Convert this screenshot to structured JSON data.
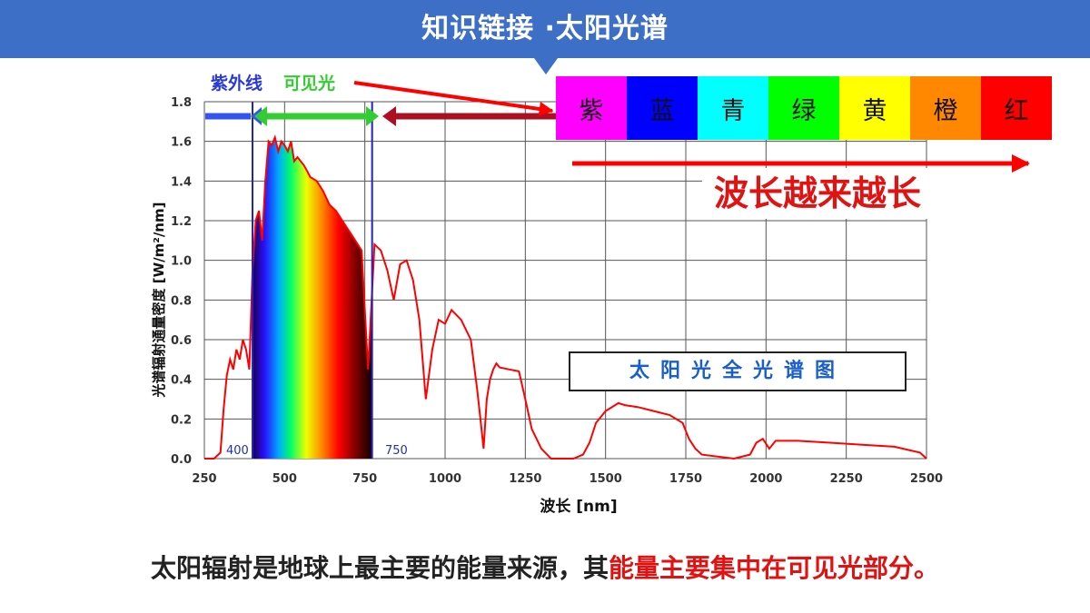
{
  "header": {
    "title": "知识链接 ·太阳光谱"
  },
  "bands": {
    "uv": "紫外线",
    "visible": "可见光"
  },
  "chart_box_label": "太阳光全光谱图",
  "color_scale": [
    {
      "name": "紫",
      "color": "#ff00ff"
    },
    {
      "name": "蓝",
      "color": "#0000ff"
    },
    {
      "name": "青",
      "color": "#00ffff"
    },
    {
      "name": "绿",
      "color": "#00ff00"
    },
    {
      "name": "黄",
      "color": "#ffff00"
    },
    {
      "name": "橙",
      "color": "#ff8800"
    },
    {
      "name": "红",
      "color": "#ff0000"
    }
  ],
  "trend_label": "波长越来越长",
  "caption": {
    "text_plain": "太阳辐射是地球上最主要的能量来源，其",
    "text_highlight": "能量主要集中在可见光部分。"
  },
  "colors": {
    "banner": "#3d6fc6",
    "curve": "#ff0000",
    "uv_arrow": "#3355ee",
    "visible_arrow": "#33cc33",
    "ir_arrow": "#aa1122",
    "highlight": "#e01212"
  },
  "chart_data": {
    "type": "line",
    "xlabel": "波长 [nm]",
    "ylabel": "光谱辐射通量密度 [W/m²/nm]",
    "xlim": [
      250,
      2500
    ],
    "ylim": [
      0,
      1.8
    ],
    "xticks": [
      250,
      500,
      750,
      1000,
      1250,
      1500,
      1750,
      2000,
      2250,
      2500
    ],
    "yticks": [
      0.0,
      0.2,
      0.4,
      0.6,
      0.8,
      1.0,
      1.2,
      1.4,
      1.6,
      1.8
    ],
    "ytick_labels": [
      "0.0",
      "0.2",
      "0.4",
      "0.6",
      "0.8",
      "1.0",
      "1.2",
      "1.4",
      "1.6",
      "1.8"
    ],
    "grid": true,
    "visible_band": {
      "start": 400,
      "end": 750,
      "start_label": "400",
      "end_label": "750"
    },
    "series": [
      {
        "x": [
          250,
          280,
          300,
          310,
          320,
          330,
          340,
          350,
          360,
          370,
          380,
          390,
          400,
          410,
          420,
          430,
          440,
          450,
          460,
          470,
          480,
          490,
          500,
          510,
          520,
          530,
          540,
          550,
          560,
          570,
          580,
          600,
          620,
          640,
          660,
          680,
          700,
          720,
          740,
          760,
          780,
          800,
          820,
          840,
          860,
          880,
          900,
          920,
          940,
          960,
          980,
          1000,
          1020,
          1050,
          1080,
          1100,
          1110,
          1120,
          1130,
          1140,
          1150,
          1160,
          1170,
          1200,
          1230,
          1250,
          1270,
          1300,
          1330,
          1350,
          1370,
          1400,
          1430,
          1450,
          1470,
          1500,
          1540,
          1560,
          1600,
          1650,
          1700,
          1740,
          1760,
          1780,
          1800,
          1900,
          1950,
          1970,
          1990,
          2010,
          2030,
          2060,
          2100,
          2200,
          2300,
          2400,
          2480,
          2500
        ],
        "y": [
          0.0,
          0.0,
          0.03,
          0.25,
          0.42,
          0.5,
          0.45,
          0.55,
          0.5,
          0.6,
          0.55,
          0.45,
          0.95,
          1.2,
          1.25,
          1.1,
          1.4,
          1.6,
          1.58,
          1.62,
          1.55,
          1.6,
          1.58,
          1.55,
          1.6,
          1.5,
          1.52,
          1.5,
          1.48,
          1.45,
          1.42,
          1.4,
          1.35,
          1.28,
          1.25,
          1.2,
          1.15,
          1.1,
          1.05,
          0.45,
          1.08,
          1.05,
          0.95,
          0.8,
          0.98,
          1.0,
          0.9,
          0.7,
          0.3,
          0.55,
          0.7,
          0.68,
          0.75,
          0.7,
          0.6,
          0.35,
          0.2,
          0.05,
          0.3,
          0.4,
          0.45,
          0.48,
          0.46,
          0.45,
          0.44,
          0.3,
          0.15,
          0.05,
          0.0,
          0.0,
          0.0,
          0.0,
          0.02,
          0.08,
          0.18,
          0.24,
          0.28,
          0.27,
          0.26,
          0.24,
          0.22,
          0.18,
          0.1,
          0.05,
          0.02,
          0.0,
          0.02,
          0.08,
          0.1,
          0.05,
          0.09,
          0.09,
          0.09,
          0.08,
          0.07,
          0.06,
          0.03,
          0.0
        ]
      }
    ]
  }
}
